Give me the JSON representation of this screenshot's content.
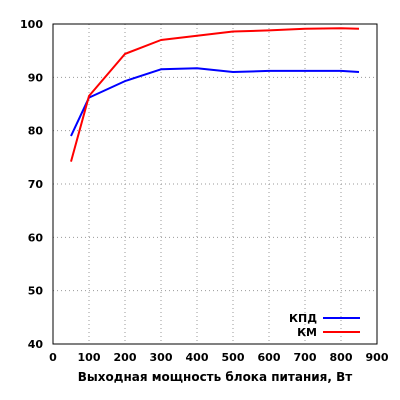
{
  "chart_data": {
    "type": "line",
    "xlabel": "Выходная мощность блока питания, Вт",
    "ylabel": "",
    "title": "",
    "xlim": [
      0,
      900
    ],
    "ylim": [
      40,
      100
    ],
    "x_ticks": [
      0,
      100,
      200,
      300,
      400,
      500,
      600,
      700,
      800,
      900
    ],
    "y_ticks": [
      40,
      50,
      60,
      70,
      80,
      90,
      100
    ],
    "x_tick_labels": [
      "0",
      "100",
      "200",
      "300",
      "400",
      "500",
      "600",
      "700",
      "800",
      "900"
    ],
    "y_tick_labels": [
      "40",
      "50",
      "60",
      "70",
      "80",
      "90",
      "100"
    ],
    "grid": true,
    "legend_position": "bottom-right",
    "series": [
      {
        "name": "КПД",
        "color": "#0000ff",
        "x": [
          50,
          100,
          200,
          300,
          400,
          500,
          600,
          700,
          800,
          850
        ],
        "y": [
          79,
          86.2,
          89.3,
          91.5,
          91.7,
          91.0,
          91.2,
          91.2,
          91.2,
          91.0
        ]
      },
      {
        "name": "КМ",
        "color": "#ff0000",
        "x": [
          50,
          100,
          200,
          300,
          400,
          500,
          600,
          700,
          800,
          850
        ],
        "y": [
          74.2,
          86.5,
          94.4,
          97.0,
          97.8,
          98.6,
          98.8,
          99.1,
          99.2,
          99.1
        ]
      }
    ]
  }
}
